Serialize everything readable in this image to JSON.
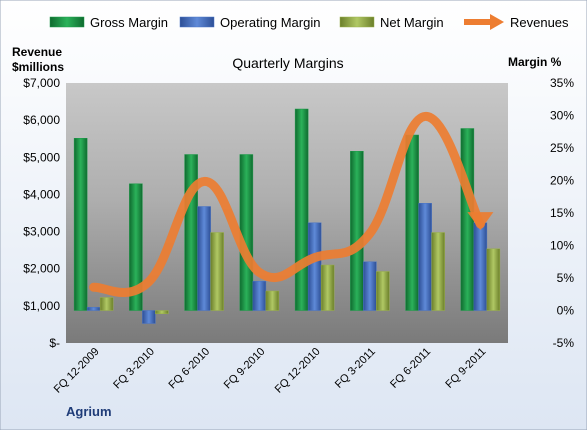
{
  "chart_data": {
    "type": "bar",
    "title": "Quarterly Margins",
    "company_label": "Agrium",
    "left_axis": {
      "label_line1": "Revenue",
      "label_line2": "$millions",
      "ylim": [
        0,
        7000
      ],
      "ticks": [
        {
          "value": 0,
          "label": "$-"
        },
        {
          "value": 1000,
          "label": "$1,000"
        },
        {
          "value": 2000,
          "label": "$2,000"
        },
        {
          "value": 3000,
          "label": "$3,000"
        },
        {
          "value": 4000,
          "label": "$4,000"
        },
        {
          "value": 5000,
          "label": "$5,000"
        },
        {
          "value": 6000,
          "label": "$6,000"
        },
        {
          "value": 7000,
          "label": "$7,000"
        }
      ]
    },
    "right_axis": {
      "label": "Margin %",
      "ylim": [
        -5,
        35
      ],
      "ticks": [
        {
          "value": -5,
          "label": "-5%"
        },
        {
          "value": 0,
          "label": "0%"
        },
        {
          "value": 5,
          "label": "5%"
        },
        {
          "value": 10,
          "label": "10%"
        },
        {
          "value": 15,
          "label": "15%"
        },
        {
          "value": 20,
          "label": "20%"
        },
        {
          "value": 25,
          "label": "25%"
        },
        {
          "value": 30,
          "label": "30%"
        },
        {
          "value": 35,
          "label": "35%"
        }
      ]
    },
    "categories": [
      "FQ 12-2009",
      "FQ 3-2010",
      "FQ 6-2010",
      "FQ 9-2010",
      "FQ 12-2010",
      "FQ 3-2011",
      "FQ 6-2011",
      "FQ 9-2011"
    ],
    "series": [
      {
        "name": "Gross Margin",
        "kind": "bar",
        "axis": "right",
        "color": "#1e9a4a",
        "values": [
          26.5,
          19.5,
          24.0,
          24.0,
          31.0,
          24.5,
          27.0,
          28.0
        ]
      },
      {
        "name": "Operating Margin",
        "kind": "bar",
        "axis": "right",
        "color": "#4a74c4",
        "values": [
          0.5,
          -2.0,
          16.0,
          4.5,
          13.5,
          7.5,
          16.5,
          13.5
        ]
      },
      {
        "name": "Net Margin",
        "kind": "bar",
        "axis": "right",
        "color": "#9ab04a",
        "values": [
          2.0,
          -0.5,
          12.0,
          3.0,
          7.0,
          6.0,
          12.0,
          9.5
        ]
      },
      {
        "name": "Revenues",
        "kind": "line",
        "axis": "left",
        "color": "#ed7d31",
        "values": [
          1500,
          1650,
          4350,
          1900,
          2300,
          2950,
          6100,
          3200
        ]
      }
    ],
    "grid": false,
    "legend_position": "top"
  }
}
